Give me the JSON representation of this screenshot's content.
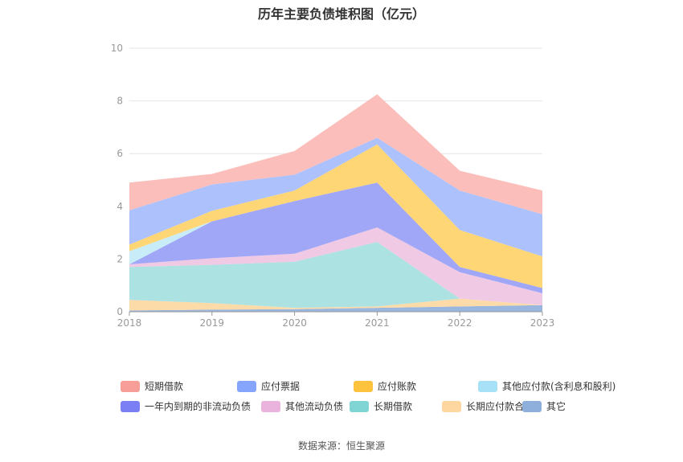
{
  "chart_data": {
    "type": "area",
    "stacked": true,
    "title": "历年主要负债堆积图（亿元）",
    "source": "数据来源：恒生聚源",
    "x": [
      "2018",
      "2019",
      "2020",
      "2021",
      "2022",
      "2023"
    ],
    "ylim": [
      0,
      10
    ],
    "yticks": [
      "0",
      "2",
      "4",
      "6",
      "8",
      "10"
    ],
    "grid": true,
    "legend_position": "bottom",
    "series": [
      {
        "name": "其它",
        "color": "#94b2dc",
        "values": [
          0.05,
          0.08,
          0.1,
          0.15,
          0.2,
          0.25
        ]
      },
      {
        "name": "长期应付款合计",
        "color": "#fdd9a3",
        "values": [
          0.4,
          0.25,
          0.05,
          0.05,
          0.3,
          0.0
        ]
      },
      {
        "name": "长期借款",
        "color": "#a8e0df",
        "values": [
          1.25,
          1.45,
          1.75,
          2.45,
          0.0,
          0.0
        ]
      },
      {
        "name": "其他流动负债",
        "color": "#efc6e4",
        "values": [
          0.1,
          0.25,
          0.3,
          0.55,
          1.0,
          0.45
        ]
      },
      {
        "name": "一年内到期的非流动负债",
        "color": "#9ba2f7",
        "values": [
          0.0,
          1.4,
          2.0,
          1.7,
          0.2,
          0.2
        ]
      },
      {
        "name": "其他应付款(含利息和股利)",
        "color": "#c5ecf8",
        "values": [
          0.5,
          0.0,
          0.0,
          0.0,
          0.0,
          0.0
        ]
      },
      {
        "name": "应付账款",
        "color": "#fed46e",
        "values": [
          0.25,
          0.4,
          0.4,
          1.45,
          1.4,
          1.2
        ]
      },
      {
        "name": "应付票据",
        "color": "#a9bffc",
        "values": [
          1.3,
          1.0,
          0.6,
          0.25,
          1.5,
          1.6
        ]
      },
      {
        "name": "短期借款",
        "color": "#fbbab7",
        "values": [
          1.05,
          0.4,
          0.9,
          1.65,
          0.75,
          0.9
        ]
      }
    ],
    "legend": [
      {
        "name": "短期借款",
        "color": "#f89e98"
      },
      {
        "name": "应付票据",
        "color": "#84a5fb"
      },
      {
        "name": "应付账款",
        "color": "#fdc23e"
      },
      {
        "name": "其他应付款(含利息和股利)",
        "color": "#a6e1f8"
      },
      {
        "name": "一年内到期的非流动负债",
        "color": "#7b7ff4"
      },
      {
        "name": "其他流动负债",
        "color": "#e9b3dd"
      },
      {
        "name": "长期借款",
        "color": "#7fd5d4"
      },
      {
        "name": "长期应付款合计",
        "color": "#fdd6a0"
      },
      {
        "name": "其它",
        "color": "#8eaedb"
      }
    ]
  }
}
